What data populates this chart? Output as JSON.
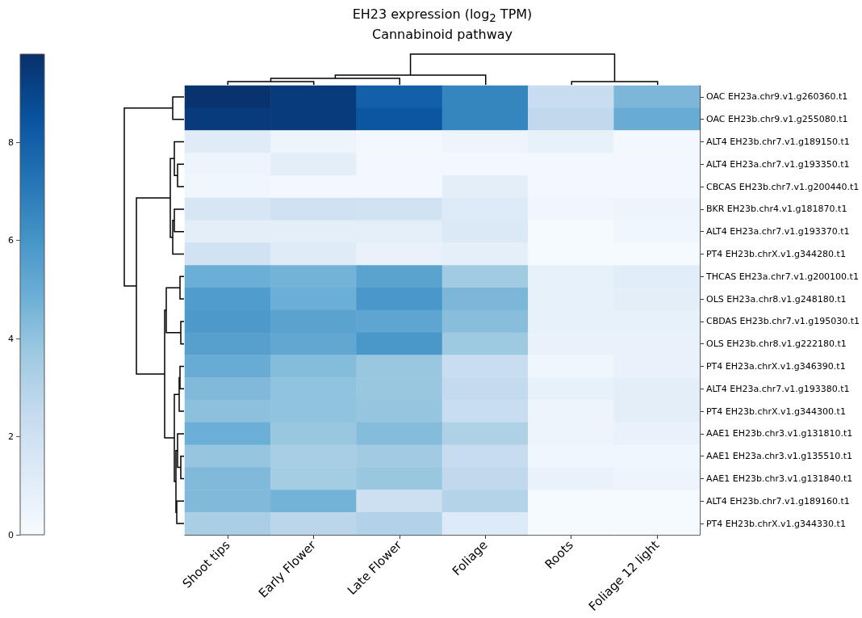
{
  "chart_data": {
    "type": "heatmap",
    "title": "EH23 expression (log$_{2}$ TPM)",
    "subtitle": "Cannabinoid pathway",
    "categories": [
      "Shoot tips",
      "Early Flower",
      "Late Flower",
      "Foliage",
      "Roots",
      "Foliage 12 light"
    ],
    "y_categories": [
      "OAC EH23a.chr9.v1.g260360.t1",
      "OAC EH23b.chr9.v1.g255080.t1",
      "ALT4 EH23b.chr7.v1.g189150.t1",
      "ALT4 EH23a.chr7.v1.g193350.t1",
      "CBCAS EH23b.chr7.v1.g200440.t1",
      "BKR EH23b.chr4.v1.g181870.t1",
      "ALT4 EH23a.chr7.v1.g193370.t1",
      "PT4 EH23b.chrX.v1.g344280.t1",
      "THCAS EH23a.chr7.v1.g200100.t1",
      "OLS EH23a.chr8.v1.g248180.t1",
      "CBDAS EH23b.chr7.v1.g195030.t1",
      "OLS EH23b.chr8.v1.g222180.t1",
      "PT4 EH23a.chrX.v1.g346390.t1",
      "ALT4 EH23a.chr7.v1.g193380.t1",
      "PT4 EH23b.chrX.v1.g344300.t1",
      "AAE1 EH23b.chr3.v1.g131810.t1",
      "AAE1 EH23a.chr3.v1.g135510.t1",
      "AAE1 EH23b.chr3.v1.g131840.t1",
      "ALT4 EH23b.chr7.v1.g189160.t1",
      "PT4 EH23b.chrX.v1.g344330.t1"
    ],
    "cells": [
      [
        9.7,
        9.4,
        8.0,
        6.6,
        2.3,
        4.5
      ],
      [
        9.4,
        9.4,
        8.4,
        6.6,
        2.6,
        5.0
      ],
      [
        1.2,
        0.5,
        0.2,
        0.5,
        0.8,
        0.2
      ],
      [
        0.5,
        1.0,
        0.2,
        0.2,
        0.2,
        0.2
      ],
      [
        0.4,
        0.2,
        0.2,
        1.0,
        0.2,
        0.2
      ],
      [
        1.6,
        2.0,
        1.9,
        1.3,
        0.4,
        0.5
      ],
      [
        1.0,
        1.0,
        1.0,
        1.4,
        0.1,
        0.4
      ],
      [
        1.9,
        1.2,
        0.7,
        0.9,
        0.1,
        0.1
      ],
      [
        4.9,
        4.7,
        5.4,
        3.6,
        0.8,
        1.1
      ],
      [
        5.7,
        4.9,
        5.9,
        4.5,
        0.8,
        1.0
      ],
      [
        5.8,
        5.4,
        5.3,
        4.2,
        0.8,
        0.8
      ],
      [
        5.5,
        5.2,
        5.9,
        3.7,
        0.7,
        0.7
      ],
      [
        5.0,
        4.3,
        3.8,
        2.3,
        0.4,
        0.7
      ],
      [
        4.4,
        4.0,
        3.8,
        2.5,
        0.8,
        1.0
      ],
      [
        4.1,
        4.0,
        3.9,
        2.3,
        0.5,
        1.0
      ],
      [
        4.9,
        3.8,
        4.3,
        3.2,
        0.5,
        0.7
      ],
      [
        3.9,
        3.4,
        3.6,
        2.4,
        0.4,
        0.4
      ],
      [
        4.4,
        3.5,
        3.8,
        2.6,
        0.7,
        0.5
      ],
      [
        4.4,
        4.7,
        2.1,
        3.0,
        0.1,
        0.1
      ],
      [
        3.3,
        2.8,
        3.1,
        1.3,
        0.1,
        0.1
      ]
    ],
    "clim": [
      0,
      9.8
    ],
    "cticks": [
      0,
      2,
      4,
      6,
      8
    ]
  }
}
